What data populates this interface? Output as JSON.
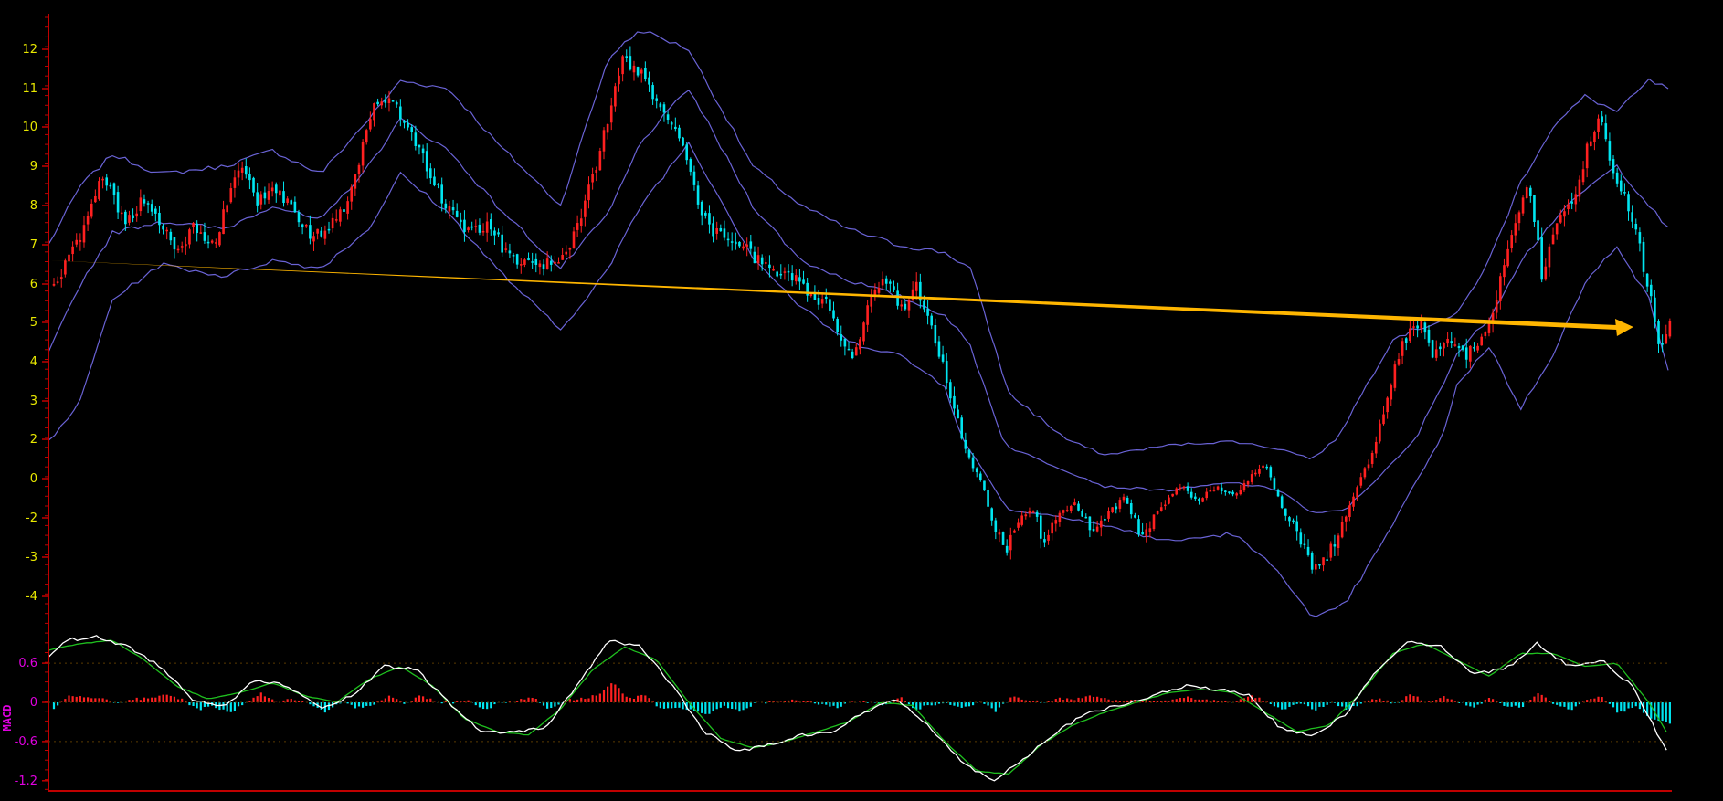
{
  "chart_data": [
    {
      "type": "candlestick",
      "panel": "price",
      "title": "",
      "xlabel": "",
      "ylabel": "",
      "ylim": [
        -4.6,
        12.8
      ],
      "y_ticks": [
        "12",
        "11",
        "10",
        "9",
        "8",
        "7",
        "6",
        "5",
        "4",
        "3",
        "2",
        "0",
        "-2",
        "-3",
        "-4"
      ],
      "n_bars": 430,
      "close_path": [
        [
          0,
          5.9
        ],
        [
          8,
          7.2
        ],
        [
          15,
          8.9
        ],
        [
          22,
          7.6
        ],
        [
          28,
          8.1
        ],
        [
          33,
          7.6
        ],
        [
          38,
          6.8
        ],
        [
          44,
          7.5
        ],
        [
          50,
          7.0
        ],
        [
          58,
          9.0
        ],
        [
          64,
          8.1
        ],
        [
          70,
          8.5
        ],
        [
          78,
          7.4
        ],
        [
          84,
          7.2
        ],
        [
          90,
          7.8
        ],
        [
          96,
          9.2
        ],
        [
          100,
          10.5
        ],
        [
          106,
          10.8
        ],
        [
          112,
          9.8
        ],
        [
          118,
          8.8
        ],
        [
          124,
          7.8
        ],
        [
          130,
          7.3
        ],
        [
          136,
          7.6
        ],
        [
          140,
          7.0
        ],
        [
          146,
          6.6
        ],
        [
          150,
          6.4
        ],
        [
          155,
          6.5
        ],
        [
          162,
          7.0
        ],
        [
          170,
          9.0
        ],
        [
          178,
          11.8
        ],
        [
          185,
          11.3
        ],
        [
          190,
          10.5
        ],
        [
          194,
          10.0
        ],
        [
          198,
          9.2
        ],
        [
          202,
          8.0
        ],
        [
          206,
          7.4
        ],
        [
          212,
          7.2
        ],
        [
          218,
          6.8
        ],
        [
          224,
          6.4
        ],
        [
          230,
          6.3
        ],
        [
          236,
          5.8
        ],
        [
          242,
          5.5
        ],
        [
          246,
          4.8
        ],
        [
          250,
          3.9
        ],
        [
          255,
          5.6
        ],
        [
          260,
          6.2
        ],
        [
          266,
          5.3
        ],
        [
          270,
          5.9
        ],
        [
          274,
          5.1
        ],
        [
          278,
          4.0
        ],
        [
          282,
          2.8
        ],
        [
          286,
          1.2
        ],
        [
          290,
          0.0
        ],
        [
          294,
          -2.2
        ],
        [
          298,
          -2.8
        ],
        [
          302,
          -2.2
        ],
        [
          306,
          -1.5
        ],
        [
          310,
          -2.8
        ],
        [
          315,
          -1.8
        ],
        [
          320,
          -1.3
        ],
        [
          325,
          -2.5
        ],
        [
          330,
          -1.8
        ],
        [
          335,
          -1.0
        ],
        [
          340,
          -2.6
        ],
        [
          345,
          -1.9
        ],
        [
          352,
          -0.2
        ],
        [
          358,
          -1.2
        ],
        [
          364,
          -0.4
        ],
        [
          370,
          -0.8
        ],
        [
          375,
          0.2
        ],
        [
          380,
          0.6
        ],
        [
          385,
          -1.8
        ],
        [
          390,
          -2.6
        ],
        [
          395,
          -3.3
        ],
        [
          400,
          -2.8
        ],
        [
          404,
          -2.0
        ],
        [
          410,
          0.2
        ],
        [
          416,
          2.6
        ],
        [
          422,
          4.5
        ],
        [
          428,
          4.9
        ],
        [
          432,
          4.2
        ],
        [
          438,
          4.6
        ],
        [
          442,
          4.2
        ],
        [
          446,
          4.5
        ],
        [
          450,
          5.1
        ],
        [
          456,
          7.2
        ],
        [
          462,
          8.6
        ],
        [
          466,
          6.2
        ],
        [
          470,
          7.4
        ],
        [
          476,
          8.2
        ],
        [
          480,
          9.4
        ],
        [
          484,
          10.4
        ],
        [
          488,
          9.0
        ],
        [
          492,
          8.2
        ],
        [
          496,
          7.1
        ],
        [
          500,
          5.6
        ],
        [
          503,
          4.4
        ],
        [
          506,
          4.9
        ]
      ],
      "bollinger": {
        "upper": [
          [
            0,
            7.0
          ],
          [
            10,
            8.5
          ],
          [
            20,
            9.3
          ],
          [
            35,
            8.8
          ],
          [
            55,
            9.0
          ],
          [
            70,
            9.4
          ],
          [
            85,
            8.8
          ],
          [
            100,
            10.2
          ],
          [
            110,
            11.2
          ],
          [
            125,
            11.0
          ],
          [
            140,
            9.6
          ],
          [
            160,
            8.0
          ],
          [
            175,
            11.8
          ],
          [
            185,
            12.5
          ],
          [
            200,
            12.0
          ],
          [
            220,
            9.0
          ],
          [
            235,
            8.0
          ],
          [
            250,
            7.4
          ],
          [
            265,
            7.0
          ],
          [
            280,
            6.8
          ],
          [
            288,
            6.4
          ],
          [
            300,
            3.2
          ],
          [
            330,
            1.2
          ],
          [
            350,
            1.7
          ],
          [
            370,
            1.9
          ],
          [
            385,
            1.5
          ],
          [
            395,
            1.0
          ],
          [
            405,
            2.4
          ],
          [
            420,
            4.6
          ],
          [
            440,
            5.2
          ],
          [
            450,
            6.6
          ],
          [
            460,
            8.6
          ],
          [
            470,
            10.0
          ],
          [
            480,
            10.8
          ],
          [
            490,
            10.4
          ],
          [
            500,
            11.2
          ],
          [
            506,
            11.0
          ]
        ],
        "middle": [
          [
            0,
            4.2
          ],
          [
            10,
            6.0
          ],
          [
            20,
            7.3
          ],
          [
            35,
            7.6
          ],
          [
            55,
            7.4
          ],
          [
            70,
            8.0
          ],
          [
            85,
            7.6
          ],
          [
            100,
            9.0
          ],
          [
            110,
            10.2
          ],
          [
            125,
            9.4
          ],
          [
            140,
            8.0
          ],
          [
            160,
            6.4
          ],
          [
            175,
            7.8
          ],
          [
            185,
            9.6
          ],
          [
            200,
            11.0
          ],
          [
            220,
            8.0
          ],
          [
            235,
            6.6
          ],
          [
            250,
            6.1
          ],
          [
            265,
            5.7
          ],
          [
            280,
            5.2
          ],
          [
            288,
            4.4
          ],
          [
            300,
            1.6
          ],
          [
            330,
            -0.4
          ],
          [
            350,
            -0.6
          ],
          [
            370,
            -0.2
          ],
          [
            385,
            -0.6
          ],
          [
            395,
            -1.8
          ],
          [
            405,
            -1.6
          ],
          [
            420,
            0.8
          ],
          [
            440,
            4.2
          ],
          [
            450,
            5.1
          ],
          [
            460,
            6.6
          ],
          [
            470,
            7.6
          ],
          [
            480,
            8.4
          ],
          [
            490,
            9.0
          ],
          [
            500,
            8.0
          ],
          [
            506,
            7.4
          ]
        ],
        "lower": [
          [
            0,
            1.9
          ],
          [
            10,
            3.0
          ],
          [
            20,
            5.6
          ],
          [
            35,
            6.5
          ],
          [
            55,
            6.2
          ],
          [
            70,
            6.6
          ],
          [
            85,
            6.4
          ],
          [
            100,
            7.4
          ],
          [
            110,
            8.8
          ],
          [
            125,
            7.8
          ],
          [
            140,
            6.4
          ],
          [
            160,
            4.8
          ],
          [
            175,
            6.4
          ],
          [
            185,
            8.0
          ],
          [
            200,
            9.6
          ],
          [
            220,
            6.7
          ],
          [
            235,
            5.4
          ],
          [
            250,
            4.5
          ],
          [
            265,
            4.2
          ],
          [
            280,
            3.4
          ],
          [
            288,
            1.4
          ],
          [
            300,
            -1.6
          ],
          [
            330,
            -2.2
          ],
          [
            350,
            -2.6
          ],
          [
            370,
            -2.4
          ],
          [
            385,
            -3.4
          ],
          [
            395,
            -4.6
          ],
          [
            405,
            -4.2
          ],
          [
            420,
            -2.2
          ],
          [
            440,
            3.4
          ],
          [
            450,
            4.4
          ],
          [
            460,
            2.8
          ],
          [
            470,
            4.2
          ],
          [
            480,
            6.0
          ],
          [
            490,
            7.0
          ],
          [
            500,
            5.6
          ],
          [
            506,
            3.8
          ]
        ]
      },
      "trendline": {
        "from": [
          0,
          6.6
        ],
        "to": [
          490,
          5.0
        ],
        "color": "#FFB600"
      },
      "colors": {
        "up": "#FF2020",
        "down": "#00E5F0",
        "band": "#6A63D6",
        "axis": "#C00000",
        "tick": "#E8E800"
      }
    },
    {
      "type": "macd",
      "panel": "indicator",
      "indicator_label": "MACD",
      "ylim": [
        -1.25,
        1.0
      ],
      "y_ticks": [
        "0.6",
        "0",
        "-0.6",
        "-1.2"
      ],
      "dif": [
        [
          0,
          0.7
        ],
        [
          5,
          0.95
        ],
        [
          15,
          1.0
        ],
        [
          25,
          0.85
        ],
        [
          35,
          0.55
        ],
        [
          45,
          0.05
        ],
        [
          55,
          -0.05
        ],
        [
          65,
          0.35
        ],
        [
          75,
          0.25
        ],
        [
          85,
          -0.1
        ],
        [
          95,
          0.1
        ],
        [
          105,
          0.55
        ],
        [
          115,
          0.5
        ],
        [
          125,
          0.0
        ],
        [
          135,
          -0.45
        ],
        [
          145,
          -0.45
        ],
        [
          155,
          -0.4
        ],
        [
          165,
          0.25
        ],
        [
          175,
          0.95
        ],
        [
          185,
          0.85
        ],
        [
          195,
          0.25
        ],
        [
          205,
          -0.45
        ],
        [
          215,
          -0.75
        ],
        [
          225,
          -0.65
        ],
        [
          235,
          -0.5
        ],
        [
          245,
          -0.45
        ],
        [
          255,
          -0.15
        ],
        [
          265,
          0.05
        ],
        [
          275,
          -0.35
        ],
        [
          285,
          -0.9
        ],
        [
          295,
          -1.2
        ],
        [
          305,
          -0.85
        ],
        [
          315,
          -0.45
        ],
        [
          325,
          -0.15
        ],
        [
          335,
          -0.05
        ],
        [
          345,
          0.1
        ],
        [
          355,
          0.25
        ],
        [
          365,
          0.2
        ],
        [
          375,
          0.1
        ],
        [
          385,
          -0.4
        ],
        [
          395,
          -0.5
        ],
        [
          405,
          -0.2
        ],
        [
          415,
          0.5
        ],
        [
          425,
          0.95
        ],
        [
          435,
          0.85
        ],
        [
          445,
          0.45
        ],
        [
          455,
          0.5
        ],
        [
          465,
          0.9
        ],
        [
          475,
          0.55
        ],
        [
          485,
          0.65
        ],
        [
          495,
          0.25
        ],
        [
          506,
          -0.8
        ]
      ],
      "dea": [
        [
          0,
          0.8
        ],
        [
          10,
          0.9
        ],
        [
          20,
          0.95
        ],
        [
          30,
          0.65
        ],
        [
          40,
          0.25
        ],
        [
          50,
          0.05
        ],
        [
          60,
          0.15
        ],
        [
          70,
          0.3
        ],
        [
          80,
          0.1
        ],
        [
          90,
          0.0
        ],
        [
          100,
          0.35
        ],
        [
          110,
          0.55
        ],
        [
          120,
          0.25
        ],
        [
          130,
          -0.25
        ],
        [
          140,
          -0.45
        ],
        [
          150,
          -0.5
        ],
        [
          160,
          -0.1
        ],
        [
          170,
          0.5
        ],
        [
          180,
          0.85
        ],
        [
          190,
          0.65
        ],
        [
          200,
          0.0
        ],
        [
          210,
          -0.55
        ],
        [
          220,
          -0.7
        ],
        [
          230,
          -0.6
        ],
        [
          240,
          -0.45
        ],
        [
          250,
          -0.3
        ],
        [
          260,
          0.0
        ],
        [
          270,
          -0.05
        ],
        [
          280,
          -0.6
        ],
        [
          290,
          -1.05
        ],
        [
          300,
          -1.1
        ],
        [
          310,
          -0.65
        ],
        [
          320,
          -0.35
        ],
        [
          330,
          -0.15
        ],
        [
          340,
          0.0
        ],
        [
          350,
          0.15
        ],
        [
          360,
          0.2
        ],
        [
          370,
          0.15
        ],
        [
          380,
          -0.15
        ],
        [
          390,
          -0.45
        ],
        [
          400,
          -0.35
        ],
        [
          410,
          0.15
        ],
        [
          420,
          0.75
        ],
        [
          430,
          0.9
        ],
        [
          440,
          0.65
        ],
        [
          450,
          0.4
        ],
        [
          460,
          0.75
        ],
        [
          470,
          0.75
        ],
        [
          480,
          0.55
        ],
        [
          490,
          0.6
        ],
        [
          500,
          0.0
        ],
        [
          506,
          -0.5
        ]
      ],
      "colors": {
        "dif": "#FFFFFF",
        "dea": "#1FC01F",
        "hist_up": "#FF2020",
        "hist_down": "#00E5F0",
        "label": "#E000E0",
        "tick": "#E000E0"
      }
    }
  ]
}
